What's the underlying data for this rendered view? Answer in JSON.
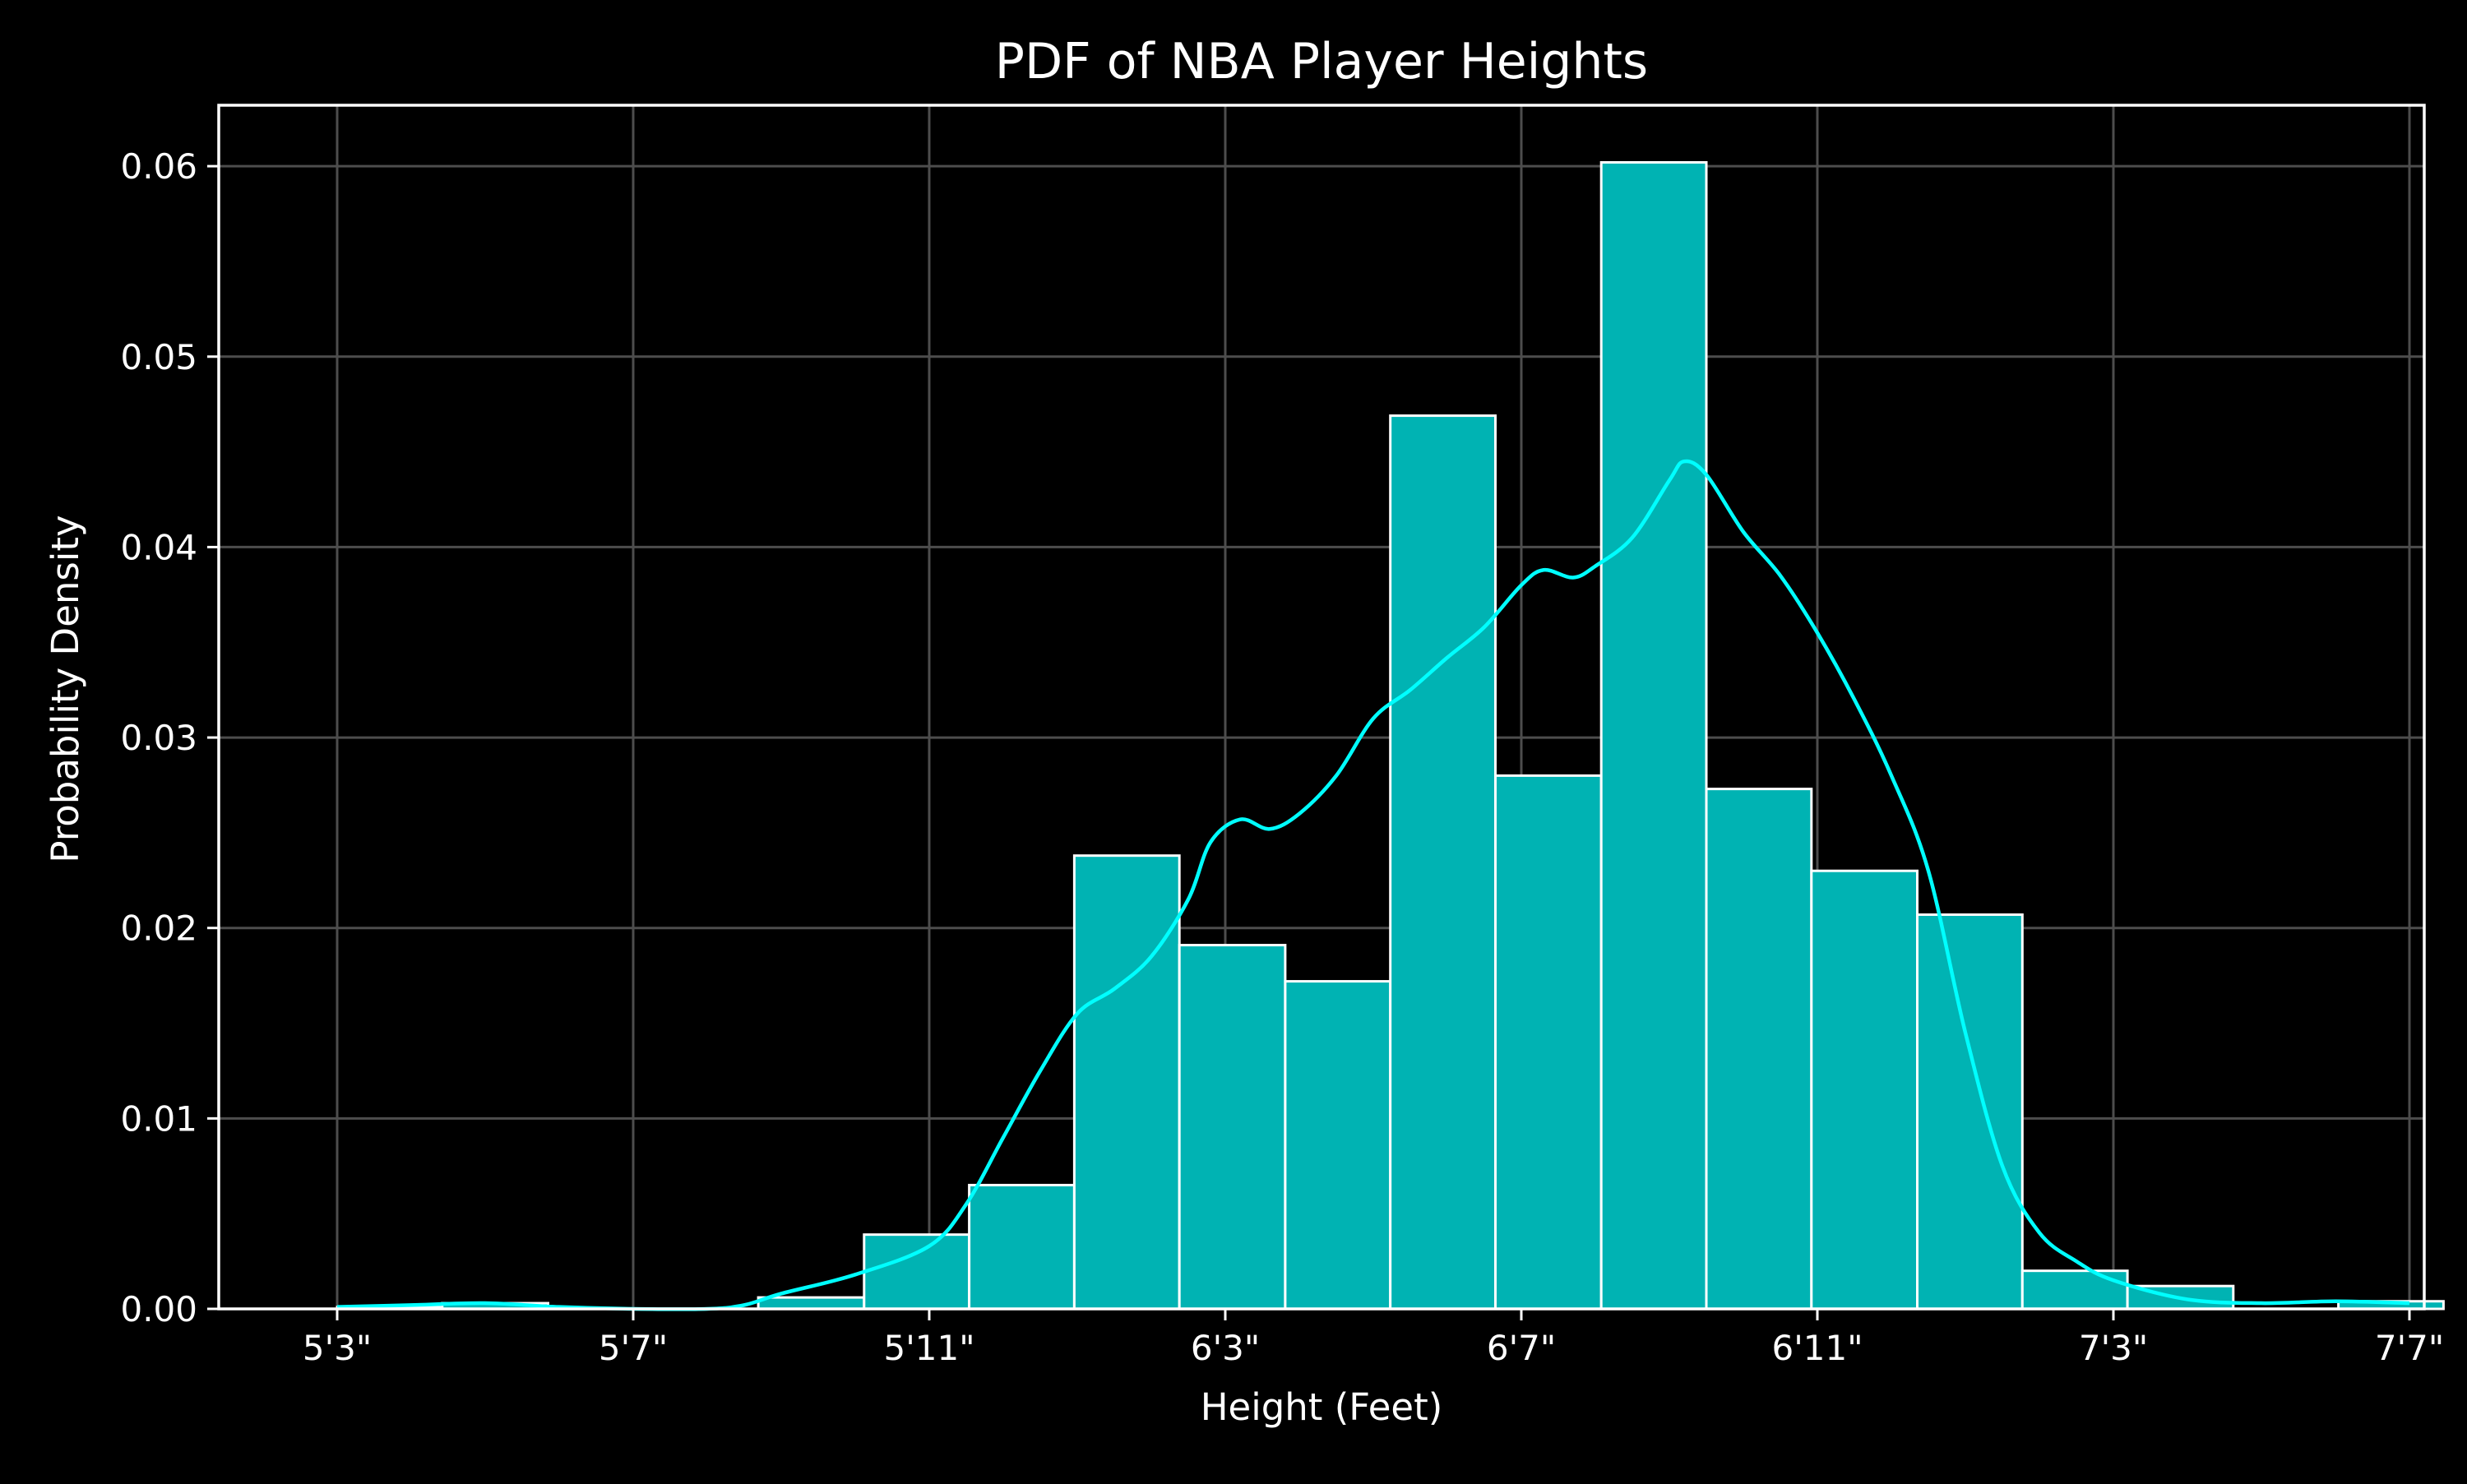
{
  "chart_data": {
    "type": "bar",
    "title": "PDF of NBA Player Heights",
    "xlabel": "Height (Feet)",
    "ylabel": "Probability Density",
    "x_unit": "inches",
    "xlim": [
      61.4,
      91.2
    ],
    "ylim": [
      0,
      0.0632
    ],
    "grid": true,
    "xticks": [
      {
        "value": 63,
        "label": "5'3\""
      },
      {
        "value": 67,
        "label": "5'7\""
      },
      {
        "value": 71,
        "label": "5'11\""
      },
      {
        "value": 75,
        "label": "6'3\""
      },
      {
        "value": 79,
        "label": "6'7\""
      },
      {
        "value": 83,
        "label": "6'11\""
      },
      {
        "value": 87,
        "label": "7'3\""
      },
      {
        "value": 91,
        "label": "7'7\""
      }
    ],
    "yticks": [
      {
        "value": 0.0,
        "label": "0.00"
      },
      {
        "value": 0.01,
        "label": "0.01"
      },
      {
        "value": 0.02,
        "label": "0.02"
      },
      {
        "value": 0.03,
        "label": "0.03"
      },
      {
        "value": 0.04,
        "label": "0.04"
      },
      {
        "value": 0.05,
        "label": "0.05"
      },
      {
        "value": 0.06,
        "label": "0.06"
      }
    ],
    "bins": [
      {
        "x0": 63.0,
        "x1": 64.42,
        "density": 0.0001
      },
      {
        "x0": 64.42,
        "x1": 65.85,
        "density": 0.0003
      },
      {
        "x0": 65.85,
        "x1": 67.27,
        "density": 0.0
      },
      {
        "x0": 67.27,
        "x1": 68.69,
        "density": 0.0
      },
      {
        "x0": 68.69,
        "x1": 70.12,
        "density": 0.0006
      },
      {
        "x0": 70.12,
        "x1": 71.54,
        "density": 0.0039
      },
      {
        "x0": 71.54,
        "x1": 72.96,
        "density": 0.0065
      },
      {
        "x0": 72.96,
        "x1": 74.38,
        "density": 0.0238
      },
      {
        "x0": 74.38,
        "x1": 75.81,
        "density": 0.0191
      },
      {
        "x0": 75.81,
        "x1": 77.23,
        "density": 0.0172
      },
      {
        "x0": 77.23,
        "x1": 78.65,
        "density": 0.0469
      },
      {
        "x0": 78.65,
        "x1": 80.08,
        "density": 0.028
      },
      {
        "x0": 80.08,
        "x1": 81.5,
        "density": 0.0602
      },
      {
        "x0": 81.5,
        "x1": 82.92,
        "density": 0.0273
      },
      {
        "x0": 82.92,
        "x1": 84.35,
        "density": 0.023
      },
      {
        "x0": 84.35,
        "x1": 85.77,
        "density": 0.0207
      },
      {
        "x0": 85.77,
        "x1": 87.19,
        "density": 0.002
      },
      {
        "x0": 87.19,
        "x1": 88.62,
        "density": 0.0012
      },
      {
        "x0": 88.62,
        "x1": 90.04,
        "density": 0.0
      },
      {
        "x0": 90.04,
        "x1": 91.46,
        "density": 0.0004
      }
    ],
    "kde": {
      "x": [
        63.0,
        64.0,
        65.0,
        66.0,
        67.0,
        68.0,
        68.5,
        69.0,
        70.0,
        71.0,
        71.5,
        72.0,
        72.5,
        73.0,
        73.5,
        74.0,
        74.5,
        74.8,
        75.2,
        75.6,
        76.0,
        76.5,
        77.0,
        77.5,
        78.0,
        78.5,
        79.0,
        79.3,
        79.7,
        80.0,
        80.5,
        81.0,
        81.2,
        81.5,
        82.0,
        82.5,
        83.0,
        83.5,
        84.0,
        84.5,
        85.0,
        85.5,
        86.0,
        86.5,
        87.0,
        88.0,
        89.0,
        90.0,
        91.0
      ],
      "y": [
        0.0001,
        0.0002,
        0.0003,
        0.0001,
        0.0,
        0.0,
        0.0002,
        0.0008,
        0.0018,
        0.0033,
        0.0055,
        0.009,
        0.0125,
        0.0155,
        0.0168,
        0.0185,
        0.0215,
        0.0245,
        0.0257,
        0.0252,
        0.026,
        0.028,
        0.031,
        0.0325,
        0.0342,
        0.0358,
        0.038,
        0.0388,
        0.0384,
        0.039,
        0.0405,
        0.0435,
        0.0445,
        0.0438,
        0.0408,
        0.0385,
        0.0355,
        0.032,
        0.028,
        0.023,
        0.0145,
        0.0075,
        0.004,
        0.0025,
        0.0015,
        0.0005,
        0.0003,
        0.0004,
        0.0003
      ]
    },
    "colors": {
      "background": "#000000",
      "bar_fill": "#00b3b3",
      "bar_edge": "#ffffff",
      "kde_line": "#00ffff",
      "grid": "#4d4d4d",
      "text": "#ffffff"
    }
  }
}
